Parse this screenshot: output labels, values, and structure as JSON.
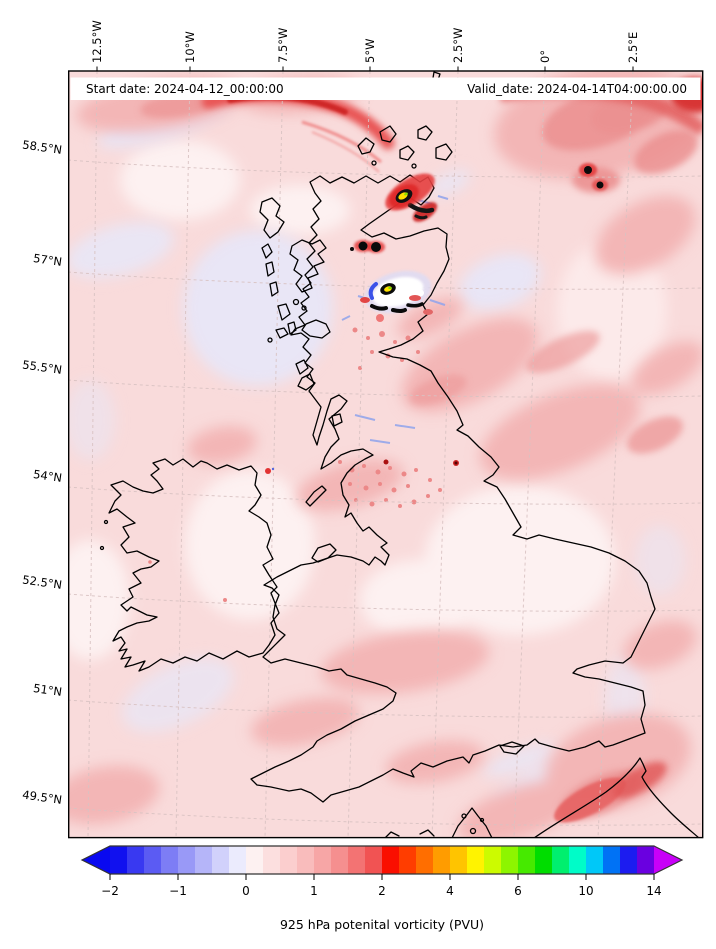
{
  "figure": {
    "header": {
      "start": "Start date: 2024-04-12_00:00:00",
      "valid": "Valid_date: 2024-04-14T04:00:00.00"
    },
    "axes": {
      "top_labels": [
        "12.5°W",
        "10°W",
        "7.5°W",
        "5°W",
        "2.5°W",
        "0°",
        "2.5°E"
      ],
      "left_labels": [
        "58.5°N",
        "57°N",
        "55.5°N",
        "54°N",
        "52.5°N",
        "51°N",
        "49.5°N"
      ]
    },
    "colorbar": {
      "tick_labels": [
        "−2",
        "−1",
        "0",
        "1",
        "2",
        "4",
        "6",
        "10",
        "14"
      ],
      "caption": "925 hPa potenital vorticity (PVU)",
      "under_color": "#0909f0",
      "over_color": "#c800f8",
      "segment_colors": [
        "#1111ef",
        "#3939f1",
        "#5b5bf3",
        "#7d7df5",
        "#9999f7",
        "#b5b5f9",
        "#d1d1fb",
        "#ebebfd",
        "#fdf1f1",
        "#fcdfdf",
        "#fbcece",
        "#f9bcbc",
        "#f7a6a6",
        "#f58f8f",
        "#f37373",
        "#f15353",
        "#fa0f00",
        "#ff3d00",
        "#ff6e00",
        "#ff9c00",
        "#ffc400",
        "#fff300",
        "#ccfb00",
        "#8df500",
        "#46ea00",
        "#00dd00",
        "#00ef6e",
        "#00fcc8",
        "#00c8f8",
        "#0072f5",
        "#1c1cf0",
        "#6a00e0"
      ]
    }
  },
  "chart_data": {
    "type": "heatmap",
    "title": "925 hPa potenital vorticity (PVU)",
    "field": "925 hPa potential vorticity",
    "units": "PVU",
    "start_date": "2024-04-12_00:00:00",
    "valid_date": "2024-04-14T04:00:00.00",
    "projection_grid": {
      "longitude_ticks": [
        "12.5°W",
        "10°W",
        "7.5°W",
        "5°W",
        "2.5°W",
        "0°",
        "2.5°E"
      ],
      "latitude_ticks": [
        "58.5°N",
        "57°N",
        "55.5°N",
        "54°N",
        "52.5°N",
        "51°N",
        "49.5°N"
      ]
    },
    "colorbar_major_levels": [
      -2,
      -1,
      0,
      1,
      2,
      4,
      6,
      10,
      14
    ],
    "colorbar_sublevels": [
      -2,
      -1.75,
      -1.5,
      -1.25,
      -1,
      -0.75,
      -0.5,
      -0.25,
      0,
      0.25,
      0.5,
      0.75,
      1,
      1.25,
      1.5,
      1.75,
      2,
      2.5,
      3,
      3.5,
      4,
      4.5,
      5,
      5.5,
      6,
      7,
      8,
      9,
      10,
      11,
      12,
      13,
      14
    ],
    "extend": "both",
    "field_summary": [
      {
        "region": "most of domain (seas, Ireland, England)",
        "value_PVU": "0 to 1 (pale pink)"
      },
      {
        "region": "west of Scotland / Hebrides, SW approaches, English Channel patches",
        "value_PVU": "-0.5 to 0 (pale lavender)"
      },
      {
        "region": "band across northern North Sea and top of domain",
        "value_PVU": "1 to 2 (red arc and streaks)"
      },
      {
        "region": "Moray Firth vortex (~57.5N 4W)",
        "value_PVU": ">14 with yellow 4-6 core, black high-PV ring"
      },
      {
        "region": "Cairngorms vortex (~56.8N 4.5W)",
        "value_PVU": "mixed +/- dipoles: black ring, yellow core, blue negative crescent, white patches"
      },
      {
        "region": "two compact maxima over North Sea (~58.3N 0.5W)",
        "value_PVU": "high PV dark spots with red halos"
      },
      {
        "region": "NE France / Channel coast (bottom right)",
        "value_PVU": "1 to 2 (deeper red band)"
      }
    ]
  }
}
